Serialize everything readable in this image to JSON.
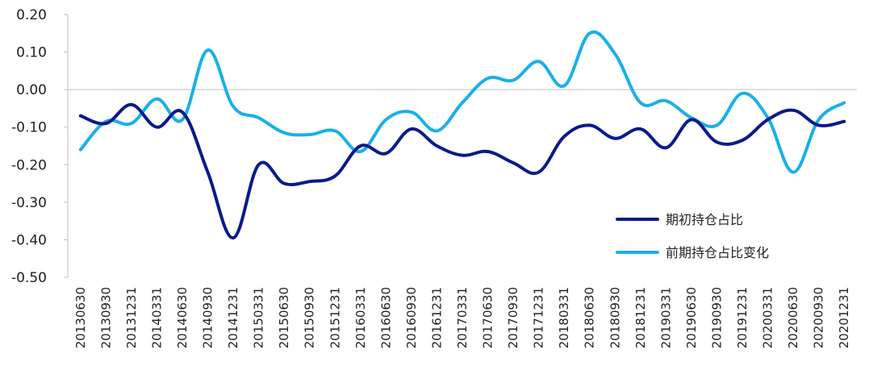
{
  "chart_data": {
    "type": "line",
    "title": "",
    "xlabel": "",
    "ylabel": "",
    "ylim": [
      -0.5,
      0.2
    ],
    "yticks": [
      "0.20",
      "0.10",
      "0.00",
      "-0.10",
      "-0.20",
      "-0.30",
      "-0.40",
      "-0.50"
    ],
    "categories": [
      "20130630",
      "20130930",
      "20131231",
      "20140331",
      "20140630",
      "20140930",
      "20141231",
      "20150331",
      "20150630",
      "20150930",
      "20151231",
      "20160331",
      "20160630",
      "20160930",
      "20161231",
      "20170331",
      "20170630",
      "20170930",
      "20171231",
      "20180331",
      "20180630",
      "20180930",
      "20181231",
      "20190331",
      "20190630",
      "20190930",
      "20191231",
      "20200331",
      "20200630",
      "20200930",
      "20201231"
    ],
    "legend_position": "lower-right inside plot",
    "grid": false,
    "series": [
      {
        "name": "期初持仓占比",
        "color": "#0a1a8c",
        "values": [
          -0.07,
          -0.09,
          -0.04,
          -0.1,
          -0.06,
          -0.22,
          -0.395,
          -0.2,
          -0.25,
          -0.245,
          -0.23,
          -0.15,
          -0.17,
          -0.105,
          -0.15,
          -0.175,
          -0.165,
          -0.195,
          -0.22,
          -0.125,
          -0.095,
          -0.13,
          -0.105,
          -0.155,
          -0.08,
          -0.14,
          -0.135,
          -0.08,
          -0.055,
          -0.095,
          -0.085
        ]
      },
      {
        "name": "前期持仓占比变化",
        "color": "#1ab0e8",
        "values": [
          -0.16,
          -0.085,
          -0.09,
          -0.025,
          -0.08,
          0.105,
          -0.045,
          -0.075,
          -0.115,
          -0.12,
          -0.11,
          -0.165,
          -0.08,
          -0.06,
          -0.11,
          -0.035,
          0.03,
          0.025,
          0.075,
          0.01,
          0.15,
          0.095,
          -0.035,
          -0.03,
          -0.075,
          -0.095,
          -0.01,
          -0.075,
          -0.22,
          -0.08,
          -0.035
        ]
      }
    ]
  }
}
